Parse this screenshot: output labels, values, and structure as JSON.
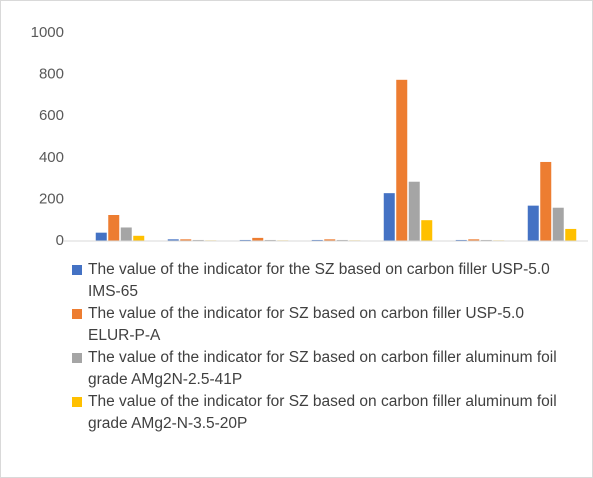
{
  "chart_data": {
    "type": "bar",
    "categories": [
      null,
      null,
      null,
      null,
      null,
      null,
      null
    ],
    "series": [
      {
        "name": "The value of the indicator for the SZ based on carbon filler USP-5.0 IMS-65",
        "color": "#4472c4",
        "values": [
          40,
          8,
          5,
          5,
          230,
          5,
          170
        ]
      },
      {
        "name": "The value of the indicator for SZ based on carbon filler USP-5.0 ELUR-P-A",
        "color": "#ed7d31",
        "values": [
          125,
          8,
          15,
          8,
          775,
          8,
          380
        ]
      },
      {
        "name": "The value of the indicator for SZ based on carbon filler aluminum foil grade AMg2N-2.5-41P",
        "color": "#a5a5a5",
        "values": [
          65,
          5,
          5,
          5,
          285,
          5,
          160
        ]
      },
      {
        "name": "The value of the indicator for SZ based on carbon filler aluminum foil grade AMg2-N-3.5-20P",
        "color": "#ffc000",
        "values": [
          25,
          3,
          3,
          3,
          100,
          3,
          58
        ]
      }
    ],
    "ylim": [
      0,
      1000
    ],
    "yticks": [
      0,
      200,
      400,
      600,
      800,
      1000
    ],
    "grid": false,
    "legend": "bottom"
  }
}
